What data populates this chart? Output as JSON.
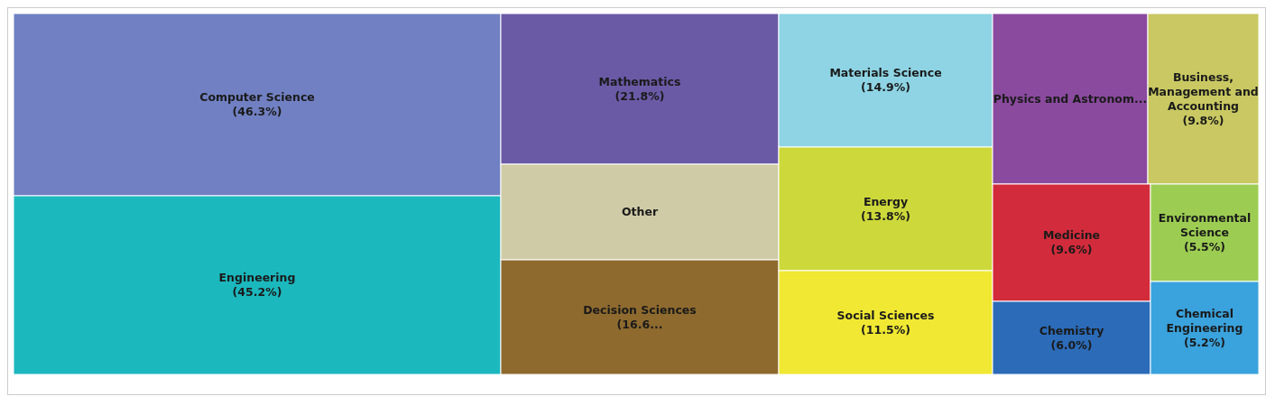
{
  "chart_data": {
    "type": "other",
    "categories": [
      "Computer Science",
      "Engineering",
      "Mathematics",
      "Other",
      "Decision Sciences",
      "Materials Science",
      "Energy",
      "Social Sciences",
      "Physics and Astronom...",
      "Business, Management and Accounting",
      "Medicine",
      "Chemistry",
      "Environmental Science",
      "Chemical Engineering"
    ],
    "values": [
      46.3,
      45.2,
      21.8,
      null,
      16.6,
      14.9,
      13.8,
      11.5,
      null,
      9.8,
      9.6,
      6.0,
      5.5,
      5.2
    ],
    "value_labels": [
      "(46.3%)",
      "(45.2%)",
      "(21.8%)",
      null,
      "(16.6...",
      "(14.9%)",
      "(13.8%)",
      "(11.5%)",
      null,
      "(9.8%)",
      "(9.6%)",
      "(6.0%)",
      "(5.5%)",
      "(5.2%)"
    ],
    "colors": [
      "#7080c2",
      "#1bb8be",
      "#6a5aa6",
      "#cfcba6",
      "#8e6a2e",
      "#8ed4e4",
      "#cdd83a",
      "#f0e832",
      "#8a4a9e",
      "#c9c862",
      "#d22b3b",
      "#2b6bb8",
      "#9ccd52",
      "#3aa2dc"
    ]
  }
}
